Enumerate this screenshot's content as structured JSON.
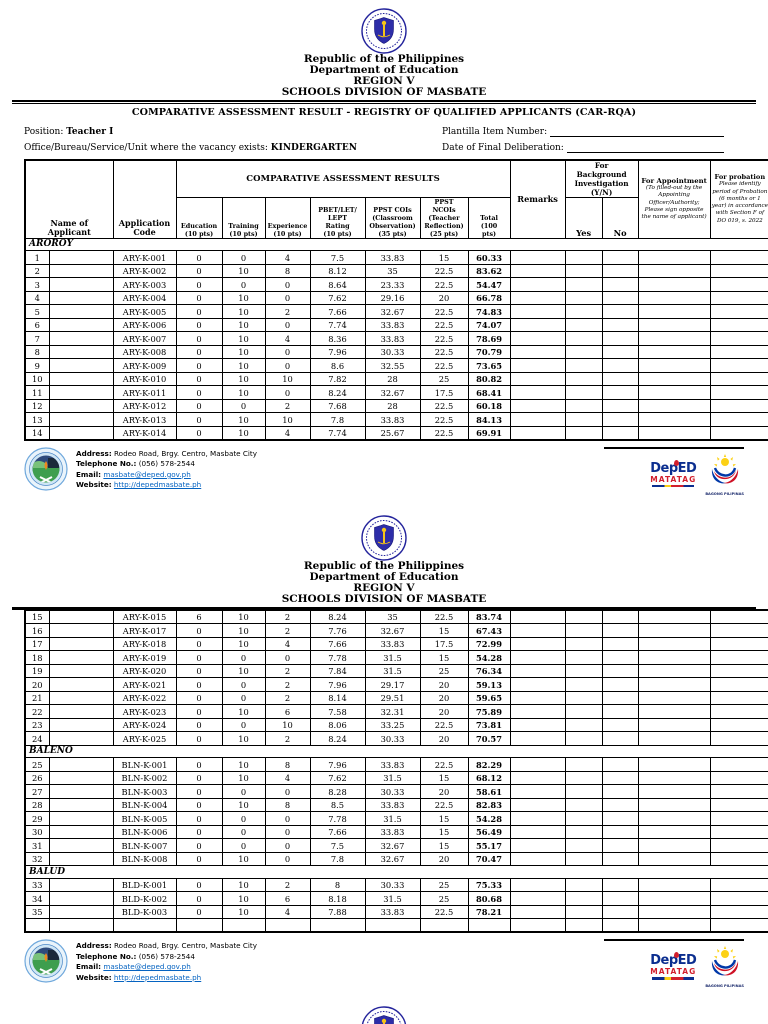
{
  "page_header": {
    "republic": "Republic of the Philippines",
    "department": "Department of Education",
    "region": "REGION V",
    "division": "SCHOOLS DIVISION OF MASBATE"
  },
  "doc_title": "COMPARATIVE ASSESSMENT RESULT - REGISTRY OF QUALIFIED APPLICANTS (CAR-RQA)",
  "meta": {
    "position_label": "Position:",
    "position_value": "Teacher I",
    "office_label": "Office/Bureau/Service/Unit where the vacancy exists:",
    "office_value": "KINDERGARTEN",
    "plantilla_label": "Plantilla Item Number:",
    "deliberation_label": "Date of Final Deliberation:"
  },
  "table": {
    "header": {
      "name": "Name of\nApplicant",
      "code": "Application\nCode",
      "car": "COMPARATIVE ASSESSMENT RESULTS",
      "education": "Education\n(10 pts)",
      "training": "Training\n(10 pts)",
      "experience": "Experience\n(10 pts)",
      "pbet": "PBET/LET/\nLEPT\nRating\n(10 pts)",
      "ppst_cois": "PPST COIs\n(Classroom\nObservation)\n(35 pts)",
      "ppst_ncois": "PPST\nNCOIs\n(Teacher\nReflection)\n(25 pts)",
      "total": "Total\n(100\npts)",
      "remarks": "Remarks",
      "bg_investigation": "For\nBackground\nInvestigation\n(Y/N)",
      "yes": "Yes",
      "no": "No",
      "appointment_title": "For Appointment",
      "appointment_note": "(To filled-out by the Appointing Officer/Authority; Please sign opposite the name of applicant)",
      "probation_title": "For probation",
      "probation_note": "Please identify period of Probation (6 months or 1 year) in accordance with Section F of DO 019, s. 2022"
    },
    "page1_sections": [
      {
        "group": "AROROY"
      },
      {
        "r": [
          "1",
          "",
          "ARY-K-001",
          "0",
          "0",
          "4",
          "7.5",
          "33.83",
          "15",
          "60.33"
        ]
      },
      {
        "r": [
          "2",
          "",
          "ARY-K-002",
          "0",
          "10",
          "8",
          "8.12",
          "35",
          "22.5",
          "83.62"
        ]
      },
      {
        "r": [
          "3",
          "",
          "ARY-K-003",
          "0",
          "0",
          "0",
          "8.64",
          "23.33",
          "22.5",
          "54.47"
        ]
      },
      {
        "r": [
          "4",
          "",
          "ARY-K-004",
          "0",
          "10",
          "0",
          "7.62",
          "29.16",
          "20",
          "66.78"
        ]
      },
      {
        "r": [
          "5",
          "",
          "ARY-K-005",
          "0",
          "10",
          "2",
          "7.66",
          "32.67",
          "22.5",
          "74.83"
        ]
      },
      {
        "r": [
          "6",
          "",
          "ARY-K-006",
          "0",
          "10",
          "0",
          "7.74",
          "33.83",
          "22.5",
          "74.07"
        ]
      },
      {
        "r": [
          "7",
          "",
          "ARY-K-007",
          "0",
          "10",
          "4",
          "8.36",
          "33.83",
          "22.5",
          "78.69"
        ]
      },
      {
        "r": [
          "8",
          "",
          "ARY-K-008",
          "0",
          "10",
          "0",
          "7.96",
          "30.33",
          "22.5",
          "70.79"
        ]
      },
      {
        "r": [
          "9",
          "",
          "ARY-K-009",
          "0",
          "10",
          "0",
          "8.6",
          "32.55",
          "22.5",
          "73.65"
        ]
      },
      {
        "r": [
          "10",
          "",
          "ARY-K-010",
          "0",
          "10",
          "10",
          "7.82",
          "28",
          "25",
          "80.82"
        ]
      },
      {
        "r": [
          "11",
          "",
          "ARY-K-011",
          "0",
          "10",
          "0",
          "8.24",
          "32.67",
          "17.5",
          "68.41"
        ]
      },
      {
        "r": [
          "12",
          "",
          "ARY-K-012",
          "0",
          "0",
          "2",
          "7.68",
          "28",
          "22.5",
          "60.18"
        ]
      },
      {
        "r": [
          "13",
          "",
          "ARY-K-013",
          "0",
          "10",
          "10",
          "7.8",
          "33.83",
          "22.5",
          "84.13"
        ]
      },
      {
        "r": [
          "14",
          "",
          "ARY-K-014",
          "0",
          "10",
          "4",
          "7.74",
          "25.67",
          "22.5",
          "69.91"
        ]
      }
    ],
    "page2_sections": [
      {
        "r": [
          "15",
          "",
          "ARY-K-015",
          "6",
          "10",
          "2",
          "8.24",
          "35",
          "22.5",
          "83.74"
        ]
      },
      {
        "r": [
          "16",
          "",
          "ARY-K-017",
          "0",
          "10",
          "2",
          "7.76",
          "32.67",
          "15",
          "67.43"
        ]
      },
      {
        "r": [
          "17",
          "",
          "ARY-K-018",
          "0",
          "10",
          "4",
          "7.66",
          "33.83",
          "17.5",
          "72.99"
        ]
      },
      {
        "r": [
          "18",
          "",
          "ARY-K-019",
          "0",
          "0",
          "0",
          "7.78",
          "31.5",
          "15",
          "54.28"
        ]
      },
      {
        "r": [
          "19",
          "",
          "ARY-K-020",
          "0",
          "10",
          "2",
          "7.84",
          "31.5",
          "25",
          "76.34"
        ]
      },
      {
        "r": [
          "20",
          "",
          "ARY-K-021",
          "0",
          "0",
          "2",
          "7.96",
          "29.17",
          "20",
          "59.13"
        ]
      },
      {
        "r": [
          "21",
          "",
          "ARY-K-022",
          "0",
          "0",
          "2",
          "8.14",
          "29.51",
          "20",
          "59.65"
        ]
      },
      {
        "r": [
          "22",
          "",
          "ARY-K-023",
          "0",
          "10",
          "6",
          "7.58",
          "32.31",
          "20",
          "75.89"
        ]
      },
      {
        "r": [
          "23",
          "",
          "ARY-K-024",
          "0",
          "0",
          "10",
          "8.06",
          "33.25",
          "22.5",
          "73.81"
        ]
      },
      {
        "r": [
          "24",
          "",
          "ARY-K-025",
          "0",
          "10",
          "2",
          "8.24",
          "30.33",
          "20",
          "70.57"
        ]
      },
      {
        "group": "BALENO"
      },
      {
        "r": [
          "25",
          "",
          "BLN-K-001",
          "0",
          "10",
          "8",
          "7.96",
          "33.83",
          "22.5",
          "82.29"
        ]
      },
      {
        "r": [
          "26",
          "",
          "BLN-K-002",
          "0",
          "10",
          "4",
          "7.62",
          "31.5",
          "15",
          "68.12"
        ]
      },
      {
        "r": [
          "27",
          "",
          "BLN-K-003",
          "0",
          "0",
          "0",
          "8.28",
          "30.33",
          "20",
          "58.61"
        ]
      },
      {
        "r": [
          "28",
          "",
          "BLN-K-004",
          "0",
          "10",
          "8",
          "8.5",
          "33.83",
          "22.5",
          "82.83"
        ]
      },
      {
        "r": [
          "29",
          "",
          "BLN-K-005",
          "0",
          "0",
          "0",
          "7.78",
          "31.5",
          "15",
          "54.28"
        ]
      },
      {
        "r": [
          "30",
          "",
          "BLN-K-006",
          "0",
          "0",
          "0",
          "7.66",
          "33.83",
          "15",
          "56.49"
        ]
      },
      {
        "r": [
          "31",
          "",
          "BLN-K-007",
          "0",
          "0",
          "0",
          "7.5",
          "32.67",
          "15",
          "55.17"
        ]
      },
      {
        "r": [
          "32",
          "",
          "BLN-K-008",
          "0",
          "10",
          "0",
          "7.8",
          "32.67",
          "20",
          "70.47"
        ]
      },
      {
        "group": "BALUD"
      },
      {
        "r": [
          "33",
          "",
          "BLD-K-001",
          "0",
          "10",
          "2",
          "8",
          "30.33",
          "25",
          "75.33"
        ]
      },
      {
        "r": [
          "34",
          "",
          "BLD-K-002",
          "0",
          "10",
          "6",
          "8.18",
          "31.5",
          "25",
          "80.68"
        ]
      },
      {
        "r": [
          "35",
          "",
          "BLD-K-003",
          "0",
          "10",
          "4",
          "7.88",
          "33.83",
          "22.5",
          "78.21"
        ]
      },
      {
        "r": [
          "",
          "",
          "",
          "",
          "",
          "",
          "",
          "",
          "",
          ""
        ]
      }
    ]
  },
  "footer": {
    "address_label": "Address:",
    "address_value": "Rodeo Road, Brgy. Centro, Masbate City",
    "phone_label": "Telephone No.:",
    "phone_value": "(056) 578-2544",
    "email_label": "Email:",
    "email_value": "masbate@deped.gov.ph",
    "website_label": "Website:",
    "website_value": "http://depedmasbate.ph",
    "deped_logo_text": "DepED",
    "matatag_text": "MATATAG",
    "bagong_text": "BAGONG PILIPINAS"
  }
}
